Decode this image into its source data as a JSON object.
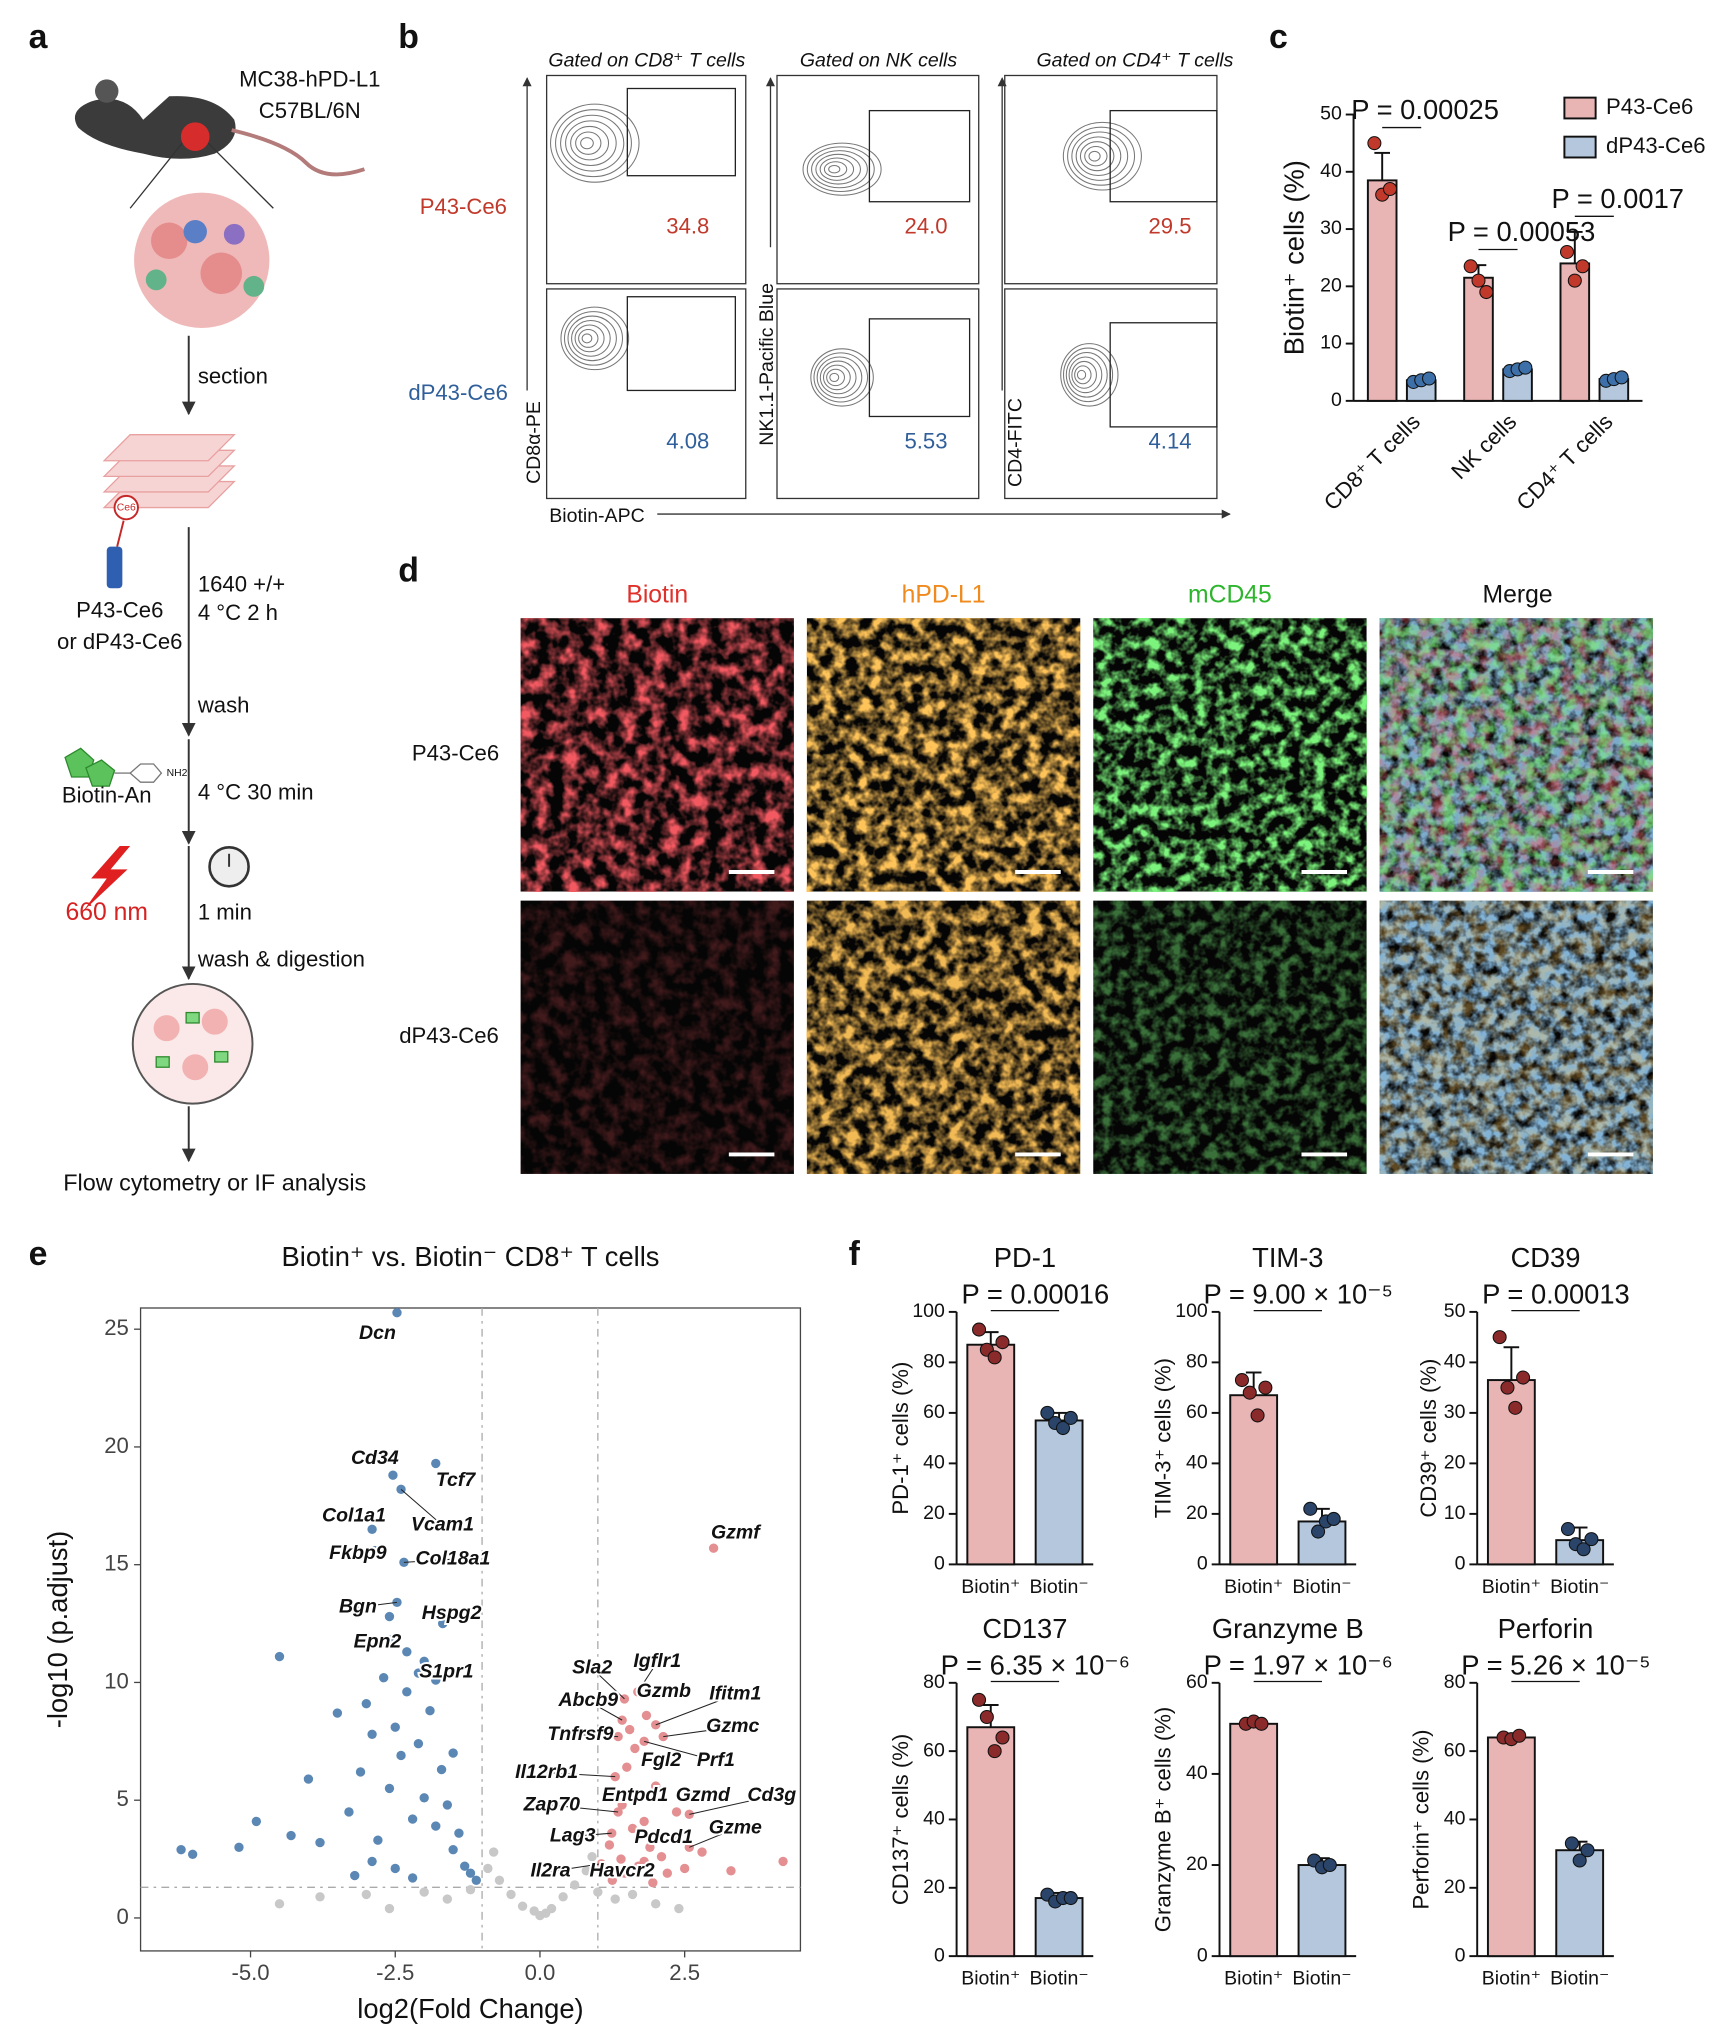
{
  "panel_labels": [
    "a",
    "b",
    "c",
    "d",
    "e",
    "f"
  ],
  "schematic": {
    "mouse_model": [
      "MC38-hPD-L1",
      "C57BL/6N"
    ],
    "steps": [
      "section",
      "1640 +/+",
      "4 °C 2 h",
      "wash",
      "4 °C 30 min",
      "1 min",
      "wash & digestion"
    ],
    "reagents": [
      "Ce6",
      "P43-Ce6",
      "or dP43-Ce6",
      "NH2",
      "Biotin-An",
      "660 nm"
    ],
    "readout": "Flow cytometry or IF analysis"
  },
  "flow": {
    "columns": [
      "Gated on CD8⁺ T cells",
      "Gated on NK cells",
      "Gated on CD4⁺ T cells"
    ],
    "rows": [
      "P43-Ce6",
      "dP43-Ce6"
    ],
    "y_axis_labels": [
      "CD8α-PE",
      "NK1.1-Pacific Blue",
      "CD4-FITC"
    ],
    "x_axis_label": "Biotin-APC",
    "gate_values": [
      [
        "34.8",
        "24.0",
        "29.5"
      ],
      [
        "4.08",
        "5.53",
        "4.14"
      ]
    ]
  },
  "imaging": {
    "columns": [
      "Biotin",
      "hPD-L1",
      "mCD45",
      "Merge"
    ],
    "rows": [
      "P43-Ce6",
      "dP43-Ce6"
    ]
  },
  "chart_data": [
    {
      "type": "bar",
      "ylabel": "Biotin⁺ cells (%)",
      "categories": [
        "CD8⁺ T cells",
        "NK cells",
        "CD4⁺ T cells"
      ],
      "series": [
        {
          "name": "P43-Ce6",
          "color": "#e8b4b4",
          "point_color": "#c0392b",
          "values": [
            38.5,
            21.5,
            24
          ],
          "errors": [
            4.8,
            2.2,
            5.5
          ],
          "points": [
            [
              45,
              36,
              37
            ],
            [
              23.5,
              21,
              19
            ],
            [
              26,
              21,
              23.5
            ]
          ]
        },
        {
          "name": "dP43-Ce6",
          "color": "#b4c7dd",
          "point_color": "#3d6fa8",
          "values": [
            3.6,
            5.5,
            3.8
          ],
          "errors": [
            0.5,
            0.5,
            0.4
          ],
          "points": [
            [
              3.3,
              3.6,
              3.9
            ],
            [
              5.2,
              5.5,
              5.8
            ],
            [
              3.5,
              3.8,
              4.1
            ]
          ]
        }
      ],
      "annotations": [
        "P = 0.00025",
        "P = 0.00053",
        "P = 0.0017"
      ],
      "ylim": [
        0,
        50
      ],
      "yticks": [
        0,
        10,
        20,
        30,
        40,
        50
      ],
      "legend": "top-right"
    },
    {
      "type": "scatter",
      "title": "Biotin⁺ vs. Biotin⁻ CD8⁺ T cells",
      "xlabel": "log2(Fold Change)",
      "ylabel": "-log10 (p.adjust)",
      "xlim": [
        -6.9,
        4.5
      ],
      "ylim": [
        -1.4,
        25.9
      ],
      "xticks": [
        {
          "value": -5,
          "label": "-5.0"
        },
        {
          "value": -2.5,
          "label": "-2.5"
        },
        {
          "value": 0,
          "label": "0.0"
        },
        {
          "value": 2.5,
          "label": "2.5"
        }
      ],
      "yticks": [
        0,
        5,
        10,
        15,
        20,
        25
      ],
      "thresholds": {
        "x": [
          -1,
          1
        ],
        "y": 1.3
      },
      "series": [
        {
          "color": "#5b87b5",
          "x": [
            -6.2,
            -6.0,
            -5.2,
            -4.9,
            -4.5,
            -4.3,
            -4.0,
            -3.8,
            -3.5,
            -3.3,
            -3.1,
            -3.0,
            -2.9,
            -2.8,
            -2.7,
            -2.6,
            -2.5,
            -2.4,
            -2.3,
            -2.2,
            -2.1,
            -2.0,
            -1.9,
            -1.8,
            -1.7,
            -1.6,
            -1.5,
            -1.4,
            -1.3,
            -1.2,
            -1.1,
            -2.6,
            -2.3,
            -2.0,
            -1.8,
            -3.2,
            -2.9,
            -2.5,
            -2.2,
            -1.5
          ],
          "values": [
            2.9,
            2.7,
            3.0,
            4.1,
            11.1,
            3.5,
            5.9,
            3.2,
            8.7,
            4.5,
            6.2,
            9.1,
            7.8,
            3.3,
            10.2,
            5.5,
            8.1,
            6.9,
            9.6,
            4.2,
            7.4,
            5.1,
            8.8,
            3.9,
            6.3,
            4.8,
            2.9,
            3.6,
            2.2,
            1.9,
            1.6,
            12.8,
            11.3,
            10.9,
            10.1,
            1.8,
            2.4,
            2.1,
            1.7,
            7.0
          ]
        },
        {
          "color": "#e48f92",
          "x": [
            1.1,
            1.2,
            1.3,
            1.4,
            1.5,
            1.6,
            1.7,
            1.8,
            1.9,
            2.0,
            2.1,
            2.2,
            2.3,
            2.5,
            2.8,
            3.3,
            4.2,
            1.25,
            1.55,
            1.95
          ],
          "values": [
            2.0,
            3.1,
            5.2,
            2.5,
            6.4,
            3.8,
            2.2,
            4.1,
            3.0,
            5.6,
            2.6,
            1.9,
            3.4,
            2.1,
            2.8,
            2.0,
            2.4,
            1.6,
            8.0,
            1.5
          ]
        },
        {
          "color": "#c8c8c8",
          "x": [
            -4.5,
            -3.8,
            -3.0,
            -2.6,
            -2.0,
            -1.6,
            -1.2,
            -0.9,
            -0.7,
            -0.5,
            -0.3,
            -0.1,
            0.0,
            0.1,
            0.2,
            0.4,
            0.6,
            0.8,
            1.0,
            1.3,
            1.6,
            2.0,
            2.4,
            0.9,
            -0.8
          ],
          "values": [
            0.6,
            0.9,
            1.0,
            0.4,
            1.1,
            0.8,
            1.2,
            2.1,
            1.6,
            1.0,
            0.5,
            0.3,
            0.1,
            0.2,
            0.4,
            0.9,
            1.4,
            2.0,
            1.1,
            0.8,
            1.0,
            0.6,
            0.4,
            2.6,
            2.8
          ]
        },
        {
          "color": "#5b87b5",
          "labels": [
            "Dcn",
            "Cd34",
            "Tcf7",
            "Col1a1",
            "Vcam1",
            "Fkbp9",
            "Col18a1",
            "Bgn",
            "Hspg2",
            "Epn2",
            "S1pr1"
          ],
          "x": [
            -2.47,
            -2.54,
            -1.8,
            -2.9,
            -2.4,
            -2.85,
            -2.35,
            -2.47,
            -1.68,
            -2.58,
            -2.1
          ],
          "values": [
            25.7,
            18.8,
            19.3,
            16.5,
            18.2,
            15.6,
            15.1,
            13.4,
            12.5,
            11.8,
            10.4
          ]
        },
        {
          "color": "#e48f92",
          "labels": [
            "Gzmf",
            "Sla2",
            "Igflr1",
            "Gzmb",
            "Ifitm1",
            "Abcb9",
            "Gzmc",
            "Tnfrsf9",
            "Fgl2",
            "Prf1",
            "Il12rb1",
            "Entpd1",
            "Gzmd",
            "Cd3g",
            "Zap70",
            "Lag3",
            "Gzme",
            "Pdcd1",
            "Il2ra",
            "Havcr2"
          ],
          "x": [
            3.0,
            1.46,
            1.69,
            1.84,
            2.0,
            1.42,
            2.13,
            1.35,
            1.64,
            1.8,
            1.3,
            1.42,
            2.36,
            2.58,
            1.35,
            1.24,
            2.58,
            1.8,
            1.06,
            1.46
          ],
          "values": [
            15.7,
            9.3,
            9.6,
            8.6,
            8.2,
            8.4,
            7.7,
            7.7,
            7.2,
            7.5,
            6.0,
            4.8,
            4.5,
            4.4,
            4.5,
            3.6,
            3.0,
            2.4,
            2.3,
            1.9
          ]
        }
      ]
    },
    {
      "type": "bar",
      "title": "PD-1",
      "ylabel": "PD-1⁺ cells (%)",
      "categories": [
        "Biotin⁺",
        "Biotin⁻"
      ],
      "values": [
        87,
        57
      ],
      "errors": [
        5,
        3
      ],
      "points": [
        [
          93,
          85,
          82,
          88
        ],
        [
          60,
          56,
          54,
          58
        ]
      ],
      "colors": [
        "#e8b4b4",
        "#b4c7dd"
      ],
      "point_colors": [
        "#8b2a2a",
        "#2a4569"
      ],
      "annotation": "P = 0.00016",
      "ylim": [
        0,
        100
      ],
      "yticks": [
        0,
        20,
        40,
        60,
        80,
        100
      ]
    },
    {
      "type": "bar",
      "title": "TIM-3",
      "ylabel": "TIM-3⁺ cells (%)",
      "categories": [
        "Biotin⁺",
        "Biotin⁻"
      ],
      "values": [
        67,
        17
      ],
      "errors": [
        9,
        5
      ],
      "points": [
        [
          73,
          68,
          59,
          70
        ],
        [
          22,
          13,
          17,
          18
        ]
      ],
      "colors": [
        "#e8b4b4",
        "#b4c7dd"
      ],
      "point_colors": [
        "#8b2a2a",
        "#2a4569"
      ],
      "annotation": "P = 9.00 × 10⁻⁵",
      "ylim": [
        0,
        100
      ],
      "yticks": [
        0,
        20,
        40,
        60,
        80,
        100
      ]
    },
    {
      "type": "bar",
      "title": "CD39",
      "ylabel": "CD39⁺ cells (%)",
      "categories": [
        "Biotin⁺",
        "Biotin⁻"
      ],
      "values": [
        36.5,
        4.8
      ],
      "errors": [
        6.5,
        2.5
      ],
      "points": [
        [
          45,
          35,
          31,
          37
        ],
        [
          7,
          4,
          3,
          5
        ]
      ],
      "colors": [
        "#e8b4b4",
        "#b4c7dd"
      ],
      "point_colors": [
        "#8b2a2a",
        "#2a4569"
      ],
      "annotation": "P = 0.00013",
      "ylim": [
        0,
        50
      ],
      "yticks": [
        0,
        10,
        20,
        30,
        40,
        50
      ]
    },
    {
      "type": "bar",
      "title": "CD137",
      "ylabel": "CD137⁺ cells (%)",
      "categories": [
        "Biotin⁺",
        "Biotin⁻"
      ],
      "values": [
        67,
        17
      ],
      "errors": [
        6.5,
        1.5
      ],
      "points": [
        [
          75,
          70,
          60,
          64
        ],
        [
          18,
          16,
          17,
          17
        ]
      ],
      "colors": [
        "#e8b4b4",
        "#b4c7dd"
      ],
      "point_colors": [
        "#8b2a2a",
        "#2a4569"
      ],
      "annotation": "P = 6.35 × 10⁻⁶",
      "ylim": [
        0,
        80
      ],
      "yticks": [
        0,
        20,
        40,
        60,
        80
      ]
    },
    {
      "type": "bar",
      "title": "Granzyme B",
      "ylabel": "Granzyme B⁺ cells (%)",
      "categories": [
        "Biotin⁺",
        "Biotin⁻"
      ],
      "values": [
        51,
        20
      ],
      "errors": [
        0.5,
        1.5
      ],
      "points": [
        [
          51,
          51.5,
          51
        ],
        [
          21,
          19.5,
          20
        ]
      ],
      "colors": [
        "#e8b4b4",
        "#b4c7dd"
      ],
      "point_colors": [
        "#8b2a2a",
        "#2a4569"
      ],
      "annotation": "P = 1.97 × 10⁻⁶",
      "ylim": [
        0,
        60
      ],
      "yticks": [
        0,
        20,
        40,
        60
      ]
    },
    {
      "type": "bar",
      "title": "Perforin",
      "ylabel": "Perforin⁺ cells (%)",
      "categories": [
        "Biotin⁺",
        "Biotin⁻"
      ],
      "values": [
        64,
        31
      ],
      "errors": [
        0.8,
        2.5
      ],
      "points": [
        [
          64,
          63.5,
          64.5
        ],
        [
          33,
          28,
          31
        ]
      ],
      "colors": [
        "#e8b4b4",
        "#b4c7dd"
      ],
      "point_colors": [
        "#8b2a2a",
        "#2a4569"
      ],
      "annotation": "P = 5.26 × 10⁻⁵",
      "ylim": [
        0,
        80
      ],
      "yticks": [
        0,
        20,
        40,
        60,
        80
      ]
    }
  ]
}
